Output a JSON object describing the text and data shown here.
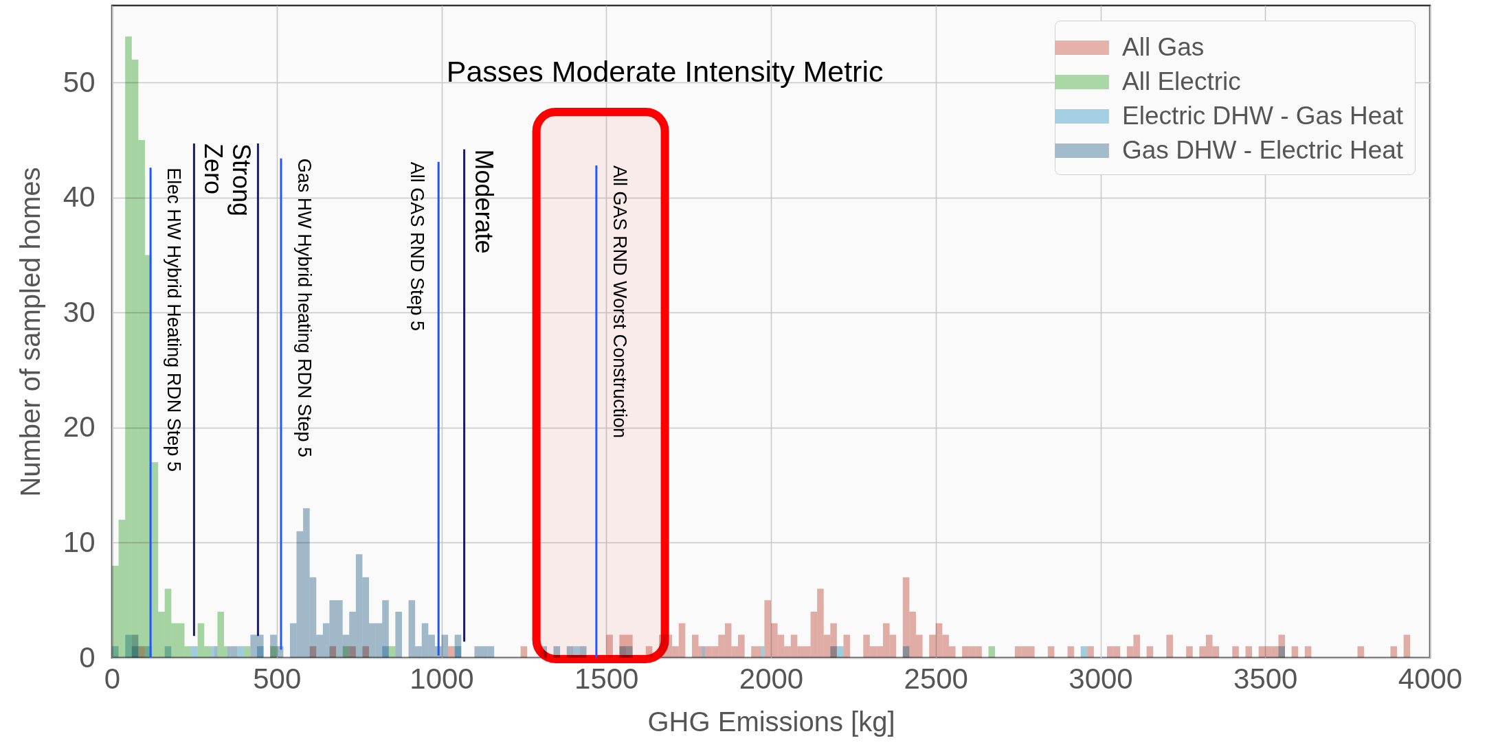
{
  "chart_data": {
    "type": "histogram",
    "xlabel": "GHG Emissions [kg]",
    "ylabel": "Number of sampled homes",
    "bins": [
      0,
      20,
      40,
      60,
      80,
      100,
      120,
      140,
      160,
      180,
      200,
      220,
      240,
      260,
      280,
      300,
      320,
      340,
      360,
      380,
      400,
      420,
      440,
      460,
      480,
      500,
      520,
      540,
      560,
      580,
      600,
      620,
      640,
      660,
      680,
      700,
      720,
      740,
      760,
      780,
      800,
      820,
      840,
      860,
      880,
      900,
      920,
      940,
      960,
      980,
      1000,
      1020,
      1040,
      1060,
      1080,
      1100,
      1120,
      1140,
      1160,
      1180,
      1200,
      1220,
      1240,
      1260,
      1280,
      1300,
      1320,
      1340,
      1360,
      1380,
      1400,
      1420,
      1440,
      1460,
      1480,
      1500,
      1520,
      1540,
      1560,
      1580,
      1600,
      1620,
      1640,
      1660,
      1680,
      1700,
      1720,
      1740,
      1760,
      1780,
      1800,
      1820,
      1840,
      1860,
      1880,
      1900,
      1920,
      1940,
      1960,
      1980,
      2000,
      2020,
      2040,
      2060,
      2080,
      2100,
      2120,
      2140,
      2160,
      2180,
      2200,
      2220,
      2240,
      2260,
      2280,
      2300,
      2320,
      2340,
      2360,
      2380,
      2400,
      2420,
      2440,
      2460,
      2480,
      2500,
      2520,
      2540,
      2560,
      2580,
      2600,
      2620,
      2640,
      2660,
      2680,
      2700,
      2720,
      2740,
      2760,
      2780,
      2800,
      2820,
      2840,
      2860,
      2880,
      2900,
      2920,
      2940,
      2960,
      2980,
      3000,
      3020,
      3040,
      3060,
      3080,
      3100,
      3120,
      3140,
      3160,
      3180,
      3200,
      3220,
      3240,
      3260,
      3280,
      3300,
      3320,
      3340,
      3360,
      3380,
      3400,
      3420,
      3440,
      3460,
      3480,
      3500,
      3520,
      3540,
      3560,
      3580,
      3600,
      3620,
      3640,
      3660,
      3680,
      3700,
      3720,
      3740,
      3760,
      3780,
      3800,
      3820,
      3840,
      3860,
      3880,
      3900,
      3920,
      3940,
      3960,
      3980,
      4000
    ],
    "series": [
      {
        "name": "All Gas",
        "color": "#e5b1a9",
        "values": [
          0,
          0,
          0,
          0,
          1,
          0,
          0,
          0,
          0,
          0,
          0,
          0,
          0,
          0,
          0,
          0,
          0,
          0,
          0,
          0,
          0,
          0,
          0,
          0,
          0,
          0,
          0,
          0,
          0,
          0,
          1,
          0,
          0,
          1,
          0,
          0,
          1,
          0,
          1,
          0,
          0,
          0,
          0,
          0,
          0,
          0,
          0,
          0,
          0,
          0,
          0,
          1,
          0,
          0,
          0,
          0,
          0,
          0,
          0,
          0,
          0,
          0,
          1,
          0,
          0,
          1,
          0,
          0,
          0,
          0,
          0,
          0,
          0,
          0,
          0,
          2,
          0,
          2,
          2,
          0,
          0,
          1,
          0,
          2,
          2,
          1,
          3,
          0,
          2,
          1,
          1,
          1,
          2,
          3,
          1,
          2,
          0,
          1,
          1,
          5,
          3,
          2,
          1,
          2,
          1,
          1,
          4,
          6,
          2,
          3,
          0,
          2,
          0,
          0,
          2,
          1,
          1,
          3,
          2,
          0,
          7,
          4,
          2,
          0,
          2,
          3,
          2,
          1,
          0,
          1,
          1,
          1,
          0,
          0,
          0,
          0,
          0,
          1,
          1,
          1,
          0,
          0,
          1,
          0,
          0,
          1,
          0,
          0,
          1,
          0,
          0,
          1,
          1,
          0,
          1,
          2,
          0,
          1,
          0,
          0,
          2,
          0,
          0,
          1,
          0,
          1,
          2,
          1,
          0,
          0,
          1,
          0,
          1,
          0,
          1,
          1,
          1,
          2,
          0,
          1,
          0,
          1,
          0,
          0,
          0,
          0,
          0,
          0,
          0,
          1,
          0,
          0,
          0,
          0,
          1,
          0,
          2,
          0,
          0,
          0
        ]
      },
      {
        "name": "All Electric",
        "color": "#a8d8a4",
        "values": [
          8,
          12,
          54,
          52,
          45,
          35,
          17,
          4,
          6,
          3,
          3,
          1,
          0,
          3,
          1,
          0,
          4,
          1,
          0,
          0,
          1,
          0,
          0,
          0,
          1,
          0,
          0,
          0,
          0,
          0,
          0,
          0,
          0,
          0,
          0,
          1,
          0,
          0,
          0,
          0,
          0,
          0,
          1,
          0,
          0,
          0,
          0,
          0,
          0,
          0,
          0,
          0,
          0,
          0,
          0,
          0,
          0,
          0,
          0,
          0,
          0,
          0,
          0,
          0,
          0,
          0,
          0,
          0,
          0,
          0,
          0,
          0,
          0,
          0,
          0,
          0,
          0,
          0,
          0,
          0,
          0,
          0,
          0,
          0,
          0,
          0,
          0,
          0,
          0,
          0,
          0,
          0,
          0,
          0,
          0,
          0,
          0,
          0,
          0,
          0,
          0,
          0,
          0,
          0,
          0,
          0,
          0,
          0,
          0,
          0,
          0,
          0,
          0,
          0,
          0,
          0,
          0,
          0,
          0,
          0,
          0,
          0,
          0,
          0,
          0,
          0,
          0,
          0,
          0,
          0,
          0,
          0,
          0,
          1,
          0,
          0,
          0,
          0,
          0,
          0,
          0,
          0,
          0,
          0,
          0,
          0,
          0,
          0,
          0,
          0,
          0,
          0,
          0,
          0,
          0,
          0,
          0,
          0,
          0,
          0,
          0,
          0,
          0,
          0,
          0,
          0,
          0,
          0,
          0,
          0,
          0,
          0,
          0,
          0,
          0,
          0,
          0,
          0,
          0,
          0,
          0,
          0,
          0,
          0,
          0,
          0,
          0,
          0,
          0,
          0,
          0,
          0,
          0,
          0,
          0,
          0,
          0,
          0,
          0,
          0
        ]
      },
      {
        "name": "Electric DHW - Gas Heat",
        "color": "#a3d0e3",
        "values": [
          1,
          0,
          2,
          1,
          0,
          1,
          0,
          0,
          1,
          0,
          0,
          0,
          1,
          0,
          0,
          1,
          0,
          0,
          0,
          1,
          0,
          0,
          1,
          0,
          0,
          0,
          0,
          0,
          0,
          0,
          0,
          0,
          0,
          0,
          0,
          0,
          0,
          0,
          0,
          0,
          0,
          1,
          0,
          0,
          0,
          0,
          0,
          0,
          0,
          0,
          0,
          0,
          1,
          0,
          0,
          0,
          0,
          0,
          0,
          0,
          0,
          0,
          0,
          0,
          0,
          0,
          0,
          0,
          0,
          0,
          1,
          0,
          0,
          0,
          0,
          0,
          0,
          0,
          1,
          0,
          0,
          0,
          0,
          0,
          0,
          0,
          0,
          0,
          0,
          0,
          0,
          0,
          0,
          0,
          0,
          0,
          0,
          0,
          1,
          0,
          0,
          0,
          0,
          0,
          0,
          0,
          0,
          0,
          0,
          0,
          1,
          0,
          0,
          0,
          0,
          0,
          0,
          0,
          0,
          0,
          1,
          0,
          0,
          0,
          0,
          0,
          0,
          0,
          0,
          0,
          0,
          0,
          0,
          0,
          0,
          0,
          0,
          0,
          0,
          0,
          0,
          0,
          0,
          0,
          0,
          0,
          0,
          1,
          0,
          0,
          0,
          0,
          0,
          0,
          0,
          0,
          0,
          0,
          0,
          0,
          0,
          0,
          0,
          0,
          0,
          0,
          0,
          0,
          0,
          0,
          0,
          0,
          0,
          0,
          0,
          0,
          0,
          1,
          0,
          0,
          0,
          0,
          0,
          0,
          0,
          0,
          0,
          0,
          0,
          0,
          0,
          0,
          0,
          0,
          0,
          0,
          0,
          0,
          0,
          0
        ]
      },
      {
        "name": "Gas DHW - Electric Heat",
        "color": "#a3bccb",
        "values": [
          0,
          0,
          0,
          2,
          0,
          0,
          0,
          0,
          0,
          0,
          0,
          0,
          0,
          0,
          0,
          1,
          0,
          1,
          1,
          0,
          0,
          2,
          2,
          0,
          2,
          1,
          0,
          3,
          11,
          13,
          7,
          2,
          3,
          5,
          5,
          2,
          4,
          9,
          7,
          3,
          3,
          5,
          0,
          4,
          0,
          5,
          1,
          3,
          2,
          1,
          2,
          0,
          2,
          0,
          0,
          1,
          1,
          1,
          0,
          0,
          0,
          0,
          0,
          0,
          0,
          1,
          0,
          1,
          0,
          1,
          0,
          1,
          0,
          0,
          0,
          0,
          0,
          1,
          0,
          0,
          0,
          0,
          0,
          0,
          0,
          0,
          0,
          0,
          0,
          1,
          0,
          0,
          0,
          0,
          0,
          0,
          0,
          0,
          0,
          0,
          0,
          0,
          0,
          0,
          0,
          0,
          0,
          0,
          0,
          1,
          0,
          0,
          0,
          0,
          0,
          0,
          0,
          0,
          0,
          0,
          0,
          0,
          0,
          0,
          0,
          0,
          0,
          0,
          0,
          0,
          0,
          0,
          0,
          0,
          0,
          0,
          0,
          0,
          0,
          0,
          0,
          0,
          0,
          0,
          0,
          0,
          0,
          0,
          0,
          0,
          0,
          0,
          0,
          0,
          0,
          0,
          0,
          0,
          0,
          0,
          0,
          0,
          0,
          0,
          0,
          0,
          0,
          0,
          0,
          0,
          0,
          0,
          0,
          0,
          0,
          0,
          0,
          0,
          0,
          0,
          0,
          0,
          0,
          0,
          0,
          0,
          0,
          0,
          0,
          0,
          0,
          0,
          0,
          0,
          0,
          0,
          0,
          0,
          0,
          0
        ]
      },
      {
        "type": "line",
        "name": "Elec HW Hybrid Heating RDN Step 5",
        "color": "#1f56ff",
        "x": [
          117,
          117
        ],
        "values": [
          0,
          42.6
        ]
      },
      {
        "type": "line",
        "name": "Zero",
        "color": "#1b1b6e",
        "x": [
          249,
          249
        ],
        "values": [
          1.9,
          44.7
        ]
      },
      {
        "type": "line",
        "name": "Strong",
        "color": "#1c1c70",
        "x": [
          443,
          443
        ],
        "values": [
          1.9,
          44.7
        ]
      },
      {
        "type": "line",
        "name": "Gas HW Hybrid heating RDN Step 5",
        "color": "#2157fd",
        "x": [
          513,
          513
        ],
        "values": [
          0.7,
          43.4
        ]
      },
      {
        "type": "line",
        "name": "All GAS RND Step 5",
        "color": "#1d54fb",
        "x": [
          991,
          991
        ],
        "values": [
          0.2,
          43.1
        ]
      },
      {
        "type": "line",
        "name": "Moderate",
        "color": "#1a1a6c",
        "x": [
          1069,
          1069
        ],
        "values": [
          1.4,
          44.2
        ]
      },
      {
        "type": "line",
        "name": "All GAS RND Worst Construction",
        "color": "#2258fe",
        "x": [
          1470,
          1470
        ],
        "values": [
          0,
          42.8
        ]
      }
    ],
    "bands": [
      {
        "axis": "x",
        "from": 1288,
        "to": 1678,
        "label": "Passes Moderate Intensity Metric",
        "color": "#ff0000"
      }
    ],
    "xlim": [
      0,
      4000
    ],
    "ylim": [
      0,
      56.7
    ],
    "xticks": [
      0,
      500,
      1000,
      1500,
      2000,
      2500,
      3000,
      3500,
      4000
    ],
    "yticks": [
      0,
      10,
      20,
      30,
      40,
      50
    ],
    "grid": true,
    "legend": "top right"
  }
}
